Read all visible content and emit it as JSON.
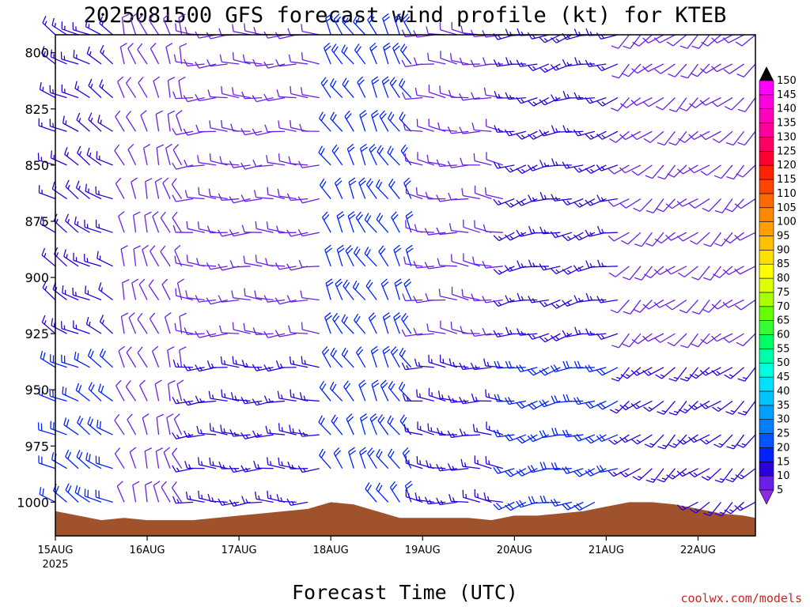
{
  "chart_data": {
    "type": "wind-barb-profile",
    "title": "2025081500 GFS forecast wind profile (kt) for KTEB",
    "xlabel": "Forecast Time (UTC)",
    "credit": "coolwx.com/models",
    "ylim": [
      1015,
      792
    ],
    "y_ticks": [
      {
        "value": 800,
        "label": "800"
      },
      {
        "value": 825,
        "label": "825"
      },
      {
        "value": 850,
        "label": "850"
      },
      {
        "value": 875,
        "label": "875"
      },
      {
        "value": 900,
        "label": "900"
      },
      {
        "value": 925,
        "label": "925"
      },
      {
        "value": 950,
        "label": "950"
      },
      {
        "value": 975,
        "label": "975"
      },
      {
        "value": 1000,
        "label": "1000"
      }
    ],
    "x_ticks": [
      {
        "value": 0,
        "label": "15AUG",
        "sub": "2025"
      },
      {
        "value": 24,
        "label": "16AUG",
        "sub": ""
      },
      {
        "value": 48,
        "label": "17AUG",
        "sub": ""
      },
      {
        "value": 72,
        "label": "18AUG",
        "sub": ""
      },
      {
        "value": 96,
        "label": "19AUG",
        "sub": ""
      },
      {
        "value": 120,
        "label": "20AUG",
        "sub": ""
      },
      {
        "value": 144,
        "label": "21AUG",
        "sub": ""
      },
      {
        "value": 168,
        "label": "22AUG",
        "sub": ""
      }
    ],
    "xlim": [
      0,
      183
    ],
    "levels": [
      792,
      805,
      820,
      835,
      850,
      865,
      880,
      895,
      910,
      925,
      940,
      955,
      970,
      985,
      1000
    ],
    "surface_pressure_hourly": [
      {
        "hour": 0,
        "p": 1004
      },
      {
        "hour": 6,
        "p": 1006
      },
      {
        "hour": 12,
        "p": 1008
      },
      {
        "hour": 18,
        "p": 1007
      },
      {
        "hour": 24,
        "p": 1008
      },
      {
        "hour": 30,
        "p": 1008
      },
      {
        "hour": 36,
        "p": 1008
      },
      {
        "hour": 42,
        "p": 1007
      },
      {
        "hour": 48,
        "p": 1006
      },
      {
        "hour": 54,
        "p": 1005
      },
      {
        "hour": 60,
        "p": 1004
      },
      {
        "hour": 66,
        "p": 1003
      },
      {
        "hour": 72,
        "p": 1000
      },
      {
        "hour": 78,
        "p": 1001
      },
      {
        "hour": 84,
        "p": 1004
      },
      {
        "hour": 90,
        "p": 1007
      },
      {
        "hour": 96,
        "p": 1007
      },
      {
        "hour": 102,
        "p": 1007
      },
      {
        "hour": 108,
        "p": 1007
      },
      {
        "hour": 114,
        "p": 1008
      },
      {
        "hour": 120,
        "p": 1006
      },
      {
        "hour": 126,
        "p": 1006
      },
      {
        "hour": 132,
        "p": 1005
      },
      {
        "hour": 138,
        "p": 1004
      },
      {
        "hour": 144,
        "p": 1002
      },
      {
        "hour": 150,
        "p": 1000
      },
      {
        "hour": 156,
        "p": 1000
      },
      {
        "hour": 162,
        "p": 1001
      },
      {
        "hour": 168,
        "p": 1003
      },
      {
        "hour": 174,
        "p": 1005
      },
      {
        "hour": 180,
        "p": 1006
      },
      {
        "hour": 183,
        "p": 1007
      }
    ],
    "surface_color": "#a0522d",
    "barb_interval_hours": 3,
    "wind_segments": [
      {
        "hours": [
          0,
          17
        ],
        "dir": 300,
        "speed": 17,
        "note": "NW flow near surface, blue barbs"
      },
      {
        "hours": [
          17,
          36
        ],
        "dir": 340,
        "speed": 10
      },
      {
        "hours": [
          36,
          72
        ],
        "dir": 270,
        "speed": 12
      },
      {
        "hours": [
          72,
          96
        ],
        "dir": 330,
        "speed": 20
      },
      {
        "hours": [
          96,
          120
        ],
        "dir": 275,
        "speed": 14
      },
      {
        "hours": [
          120,
          150
        ],
        "dir": 255,
        "speed": 16
      },
      {
        "hours": [
          150,
          183
        ],
        "dir": 230,
        "speed": 12
      }
    ],
    "colorbar": {
      "values": [
        5,
        10,
        15,
        20,
        25,
        30,
        35,
        40,
        45,
        50,
        55,
        60,
        65,
        70,
        75,
        80,
        85,
        90,
        95,
        100,
        105,
        110,
        115,
        120,
        125,
        130,
        135,
        140,
        145,
        150
      ],
      "colors": [
        "#8a2be2",
        "#6a1fe6",
        "#2a00dd",
        "#0022ff",
        "#0055ff",
        "#0080ff",
        "#00a0ff",
        "#00c4ff",
        "#00e0ff",
        "#00ffdd",
        "#00ffaa",
        "#00ff66",
        "#33ff33",
        "#66ff00",
        "#aaff00",
        "#ddff00",
        "#ffff00",
        "#ffe000",
        "#ffc000",
        "#ffa000",
        "#ff8800",
        "#ff6a00",
        "#ff4400",
        "#ff2200",
        "#ff0033",
        "#ff0066",
        "#ff0099",
        "#ff00bb",
        "#ff00dd",
        "#ff00ff"
      ]
    }
  }
}
